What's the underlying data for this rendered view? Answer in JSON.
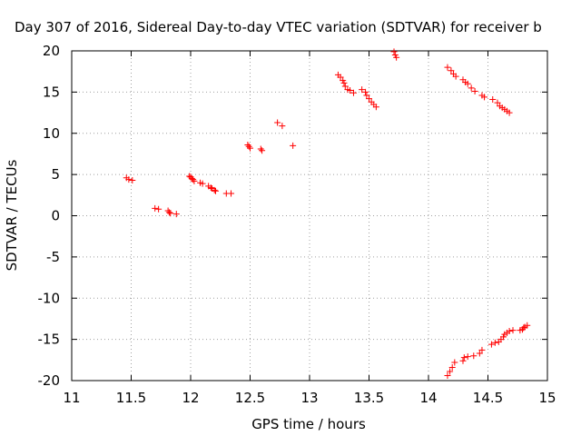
{
  "colors": {
    "marker": "#ff0000",
    "grid": "#a0a0a0",
    "axis": "#000000",
    "background": "#ffffff"
  },
  "chart_data": {
    "type": "scatter",
    "title": "Day 307 of 2016, Sidereal Day-to-day VTEC variation (SDTVAR) for receiver b",
    "xlabel": "GPS time / hours",
    "ylabel": "SDTVAR / TECUs",
    "xlim": [
      11,
      15
    ],
    "ylim": [
      -20,
      20
    ],
    "xticks": [
      11,
      11.5,
      12,
      12.5,
      13,
      13.5,
      14,
      14.5,
      15
    ],
    "xtick_labels": [
      "11",
      "11.5",
      "12",
      "12.5",
      "13",
      "13.5",
      "14",
      "14.5",
      "15"
    ],
    "yticks": [
      -20,
      -15,
      -10,
      -5,
      0,
      5,
      10,
      15,
      20
    ],
    "ytick_labels": [
      "-20",
      "-15",
      "-10",
      "-5",
      "0",
      "5",
      "10",
      "15",
      "20"
    ],
    "grid": true,
    "marker": "+",
    "series": [
      {
        "name": "SDTVAR",
        "points": [
          [
            11.46,
            4.6
          ],
          [
            11.48,
            4.4
          ],
          [
            11.51,
            4.3
          ],
          [
            11.7,
            0.9
          ],
          [
            11.73,
            0.8
          ],
          [
            11.81,
            0.6
          ],
          [
            11.82,
            0.4
          ],
          [
            11.83,
            0.3
          ],
          [
            11.88,
            0.2
          ],
          [
            11.99,
            4.8
          ],
          [
            12.0,
            4.7
          ],
          [
            12.01,
            4.5
          ],
          [
            12.02,
            4.4
          ],
          [
            12.03,
            4.2
          ],
          [
            12.08,
            4.0
          ],
          [
            12.1,
            3.9
          ],
          [
            12.15,
            3.6
          ],
          [
            12.17,
            3.4
          ],
          [
            12.18,
            3.3
          ],
          [
            12.2,
            3.1
          ],
          [
            12.21,
            3.0
          ],
          [
            12.3,
            2.7
          ],
          [
            12.34,
            2.7
          ],
          [
            12.48,
            8.6
          ],
          [
            12.49,
            8.4
          ],
          [
            12.5,
            8.2
          ],
          [
            12.59,
            8.1
          ],
          [
            12.6,
            7.9
          ],
          [
            12.73,
            11.3
          ],
          [
            12.77,
            10.9
          ],
          [
            12.86,
            8.5
          ],
          [
            13.24,
            17.1
          ],
          [
            13.26,
            16.8
          ],
          [
            13.28,
            16.4
          ],
          [
            13.29,
            16.1
          ],
          [
            13.3,
            15.7
          ],
          [
            13.32,
            15.3
          ],
          [
            13.34,
            15.2
          ],
          [
            13.37,
            14.9
          ],
          [
            13.44,
            15.3
          ],
          [
            13.47,
            15.0
          ],
          [
            13.48,
            14.6
          ],
          [
            13.5,
            14.2
          ],
          [
            13.52,
            13.8
          ],
          [
            13.54,
            13.5
          ],
          [
            13.56,
            13.2
          ],
          [
            13.71,
            19.9
          ],
          [
            13.72,
            19.5
          ],
          [
            13.73,
            19.2
          ],
          [
            14.16,
            18.0
          ],
          [
            14.19,
            17.6
          ],
          [
            14.21,
            17.2
          ],
          [
            14.23,
            16.9
          ],
          [
            14.29,
            16.5
          ],
          [
            14.31,
            16.2
          ],
          [
            14.33,
            16.0
          ],
          [
            14.36,
            15.5
          ],
          [
            14.39,
            15.1
          ],
          [
            14.45,
            14.6
          ],
          [
            14.47,
            14.4
          ],
          [
            14.54,
            14.1
          ],
          [
            14.58,
            13.7
          ],
          [
            14.6,
            13.3
          ],
          [
            14.62,
            13.1
          ],
          [
            14.64,
            12.9
          ],
          [
            14.66,
            12.7
          ],
          [
            14.68,
            12.5
          ],
          [
            14.16,
            -19.4
          ],
          [
            14.18,
            -18.9
          ],
          [
            14.2,
            -18.4
          ],
          [
            14.22,
            -17.8
          ],
          [
            14.29,
            -17.6
          ],
          [
            14.3,
            -17.2
          ],
          [
            14.33,
            -17.1
          ],
          [
            14.38,
            -17.0
          ],
          [
            14.43,
            -16.7
          ],
          [
            14.45,
            -16.3
          ],
          [
            14.53,
            -15.6
          ],
          [
            14.56,
            -15.4
          ],
          [
            14.59,
            -15.3
          ],
          [
            14.61,
            -15.0
          ],
          [
            14.63,
            -14.7
          ],
          [
            14.64,
            -14.4
          ],
          [
            14.66,
            -14.2
          ],
          [
            14.68,
            -14.0
          ],
          [
            14.71,
            -13.9
          ],
          [
            14.77,
            -13.9
          ],
          [
            14.79,
            -13.8
          ],
          [
            14.8,
            -13.6
          ],
          [
            14.81,
            -13.5
          ],
          [
            14.83,
            -13.3
          ]
        ]
      }
    ]
  }
}
